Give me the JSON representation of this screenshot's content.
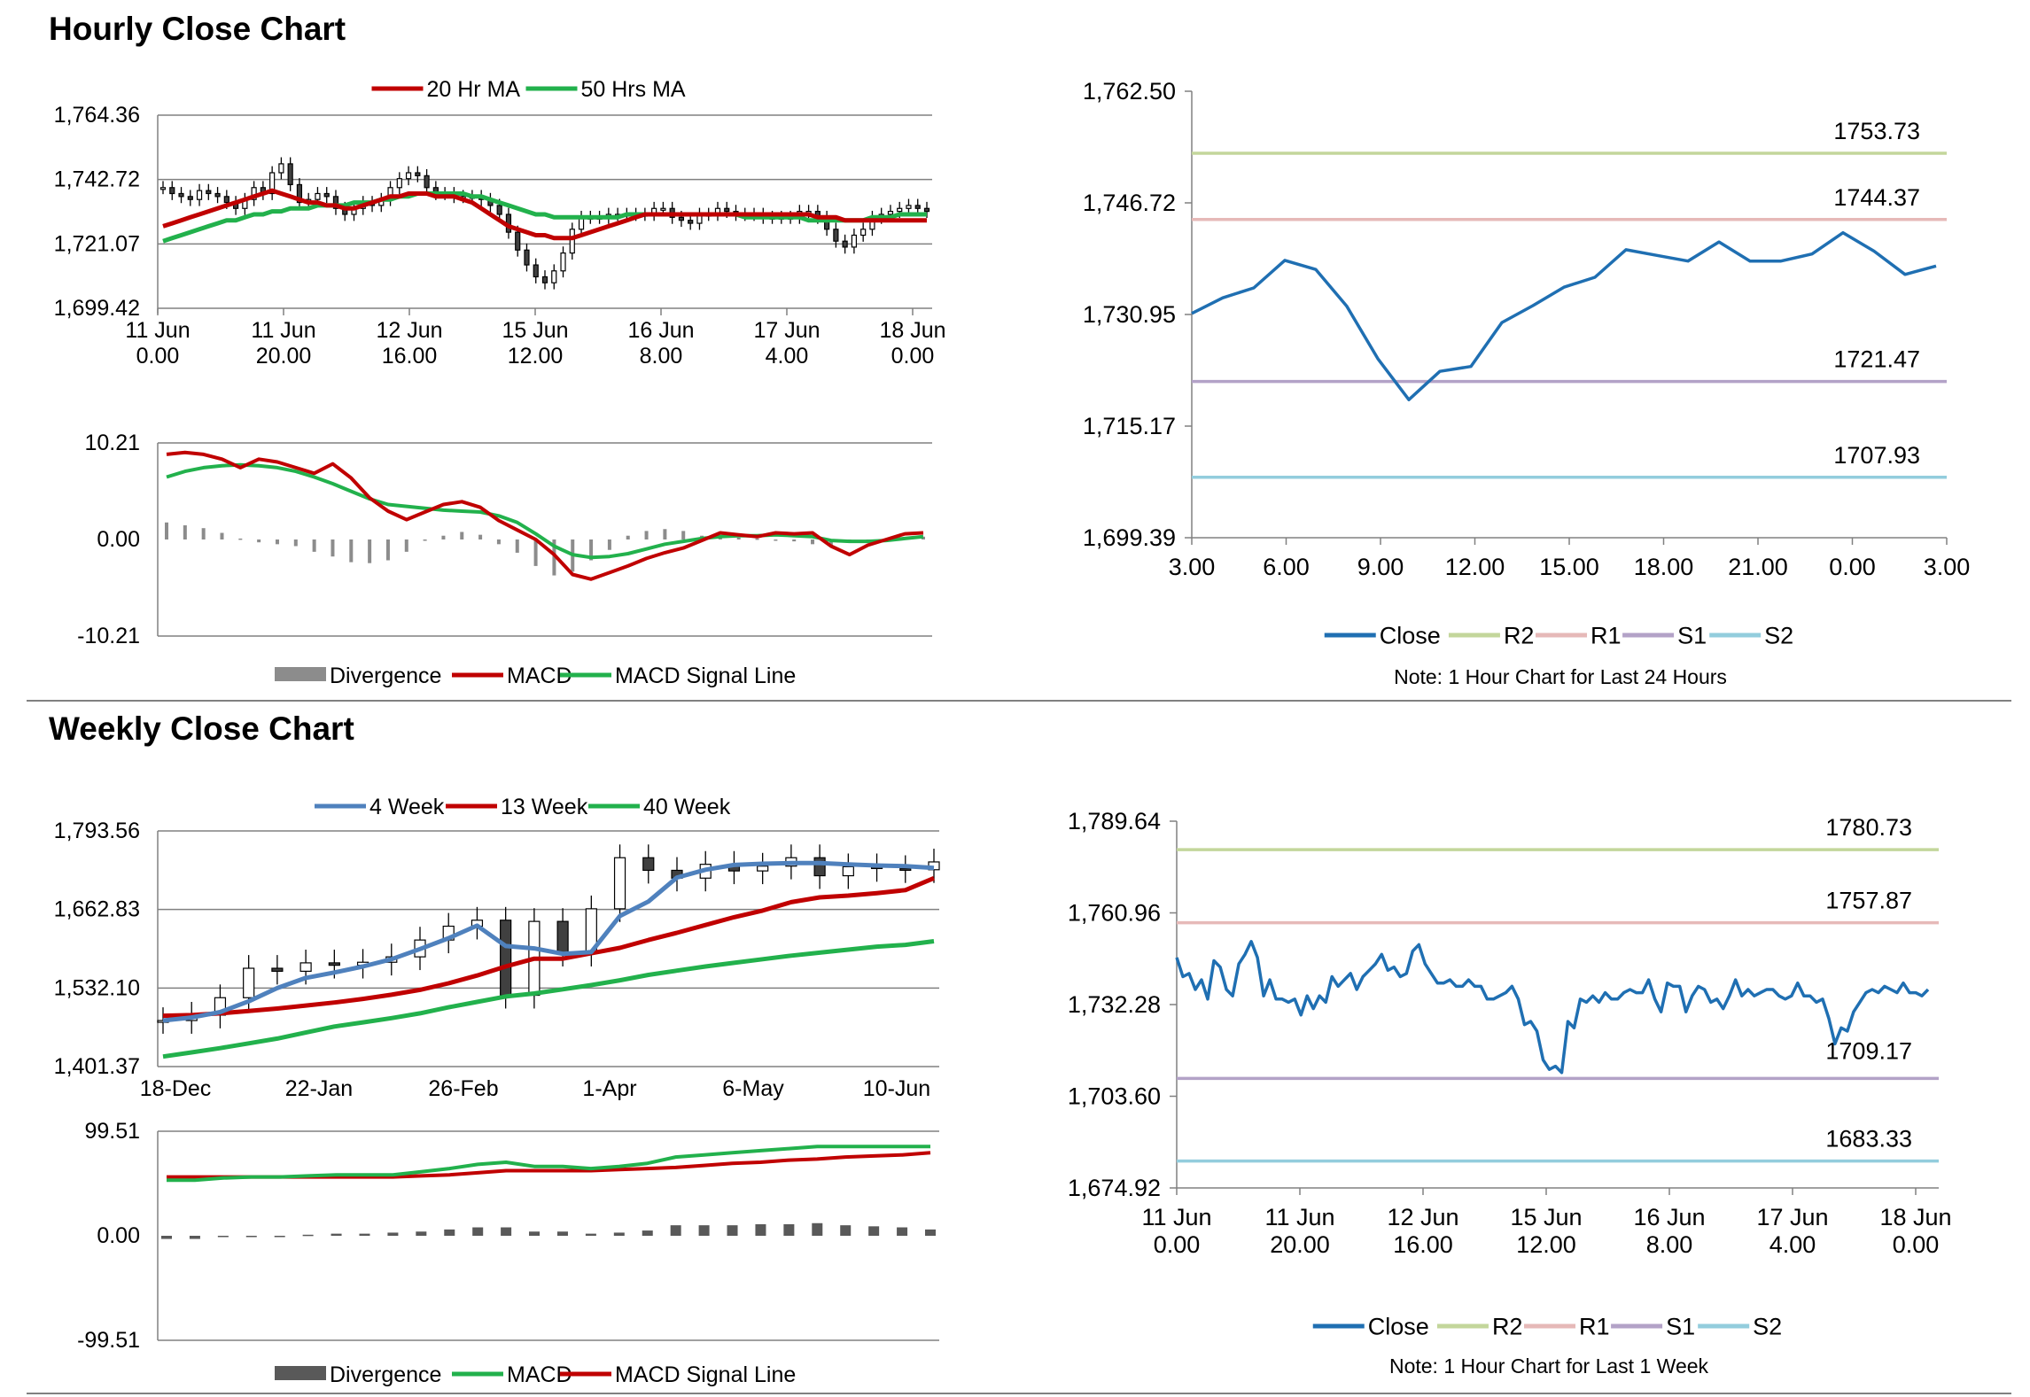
{
  "sections": {
    "hourly_title": "Hourly Close Chart",
    "weekly_title": "Weekly Close Chart"
  },
  "colors": {
    "ma20": "#c00000",
    "ma50": "#22b14c",
    "close": "#1f6fb2",
    "R2": "#c3d69b",
    "R1": "#e6b9b8",
    "S1": "#b3a2c7",
    "S2": "#93cddd",
    "w4": "#4f81bd",
    "w13": "#c00000",
    "w40": "#22b14c",
    "divergence": "#7f7f7f",
    "grid": "#808080"
  },
  "chart_data": [
    {
      "id": "hourly_price",
      "type": "candlestick",
      "legend": [
        "20 Hr MA",
        "50 Hrs MA"
      ],
      "y_ticks": [
        "1,764.36",
        "1,742.72",
        "1,721.07",
        "1,699.42"
      ],
      "ylim": [
        1699.42,
        1764.36
      ],
      "x_ticks": [
        "11 Jun\n0.00",
        "11 Jun\n20.00",
        "12 Jun\n16.00",
        "15 Jun\n12.00",
        "16 Jun\n8.00",
        "17 Jun\n4.00",
        "18 Jun\n0.00"
      ],
      "close": [
        1740,
        1738,
        1737,
        1736,
        1739,
        1738,
        1737,
        1735,
        1733,
        1736,
        1740,
        1738,
        1745,
        1748,
        1741,
        1735,
        1736,
        1738,
        1737,
        1733,
        1731,
        1733,
        1735,
        1734,
        1736,
        1740,
        1743,
        1745,
        1744,
        1740,
        1738,
        1738,
        1737,
        1737,
        1737,
        1736,
        1734,
        1731,
        1725,
        1719,
        1714,
        1710,
        1708,
        1712,
        1718,
        1726,
        1730,
        1730,
        1730,
        1731,
        1731,
        1731,
        1731,
        1731,
        1733,
        1733,
        1730,
        1729,
        1728,
        1731,
        1731,
        1733,
        1732,
        1731,
        1731,
        1731,
        1730,
        1730,
        1730,
        1730,
        1732,
        1732,
        1730,
        1726,
        1722,
        1720,
        1724,
        1726,
        1730,
        1731,
        1732,
        1733,
        1734,
        1733,
        1732
      ],
      "ma20": [
        1727,
        1728,
        1729,
        1730,
        1731,
        1732,
        1733,
        1734,
        1735,
        1736,
        1737,
        1738,
        1739,
        1738,
        1737,
        1736,
        1735,
        1735,
        1734,
        1734,
        1733,
        1733,
        1734,
        1735,
        1736,
        1737,
        1737,
        1738,
        1738,
        1738,
        1737,
        1737,
        1737,
        1736,
        1735,
        1733,
        1731,
        1729,
        1727,
        1726,
        1725,
        1724,
        1724,
        1723,
        1723,
        1723,
        1724,
        1725,
        1726,
        1727,
        1728,
        1729,
        1730,
        1731,
        1731,
        1731,
        1731,
        1731,
        1731,
        1731,
        1731,
        1731,
        1731,
        1731,
        1731,
        1731,
        1731,
        1731,
        1731,
        1731,
        1731,
        1731,
        1730,
        1730,
        1730,
        1729,
        1729,
        1729,
        1729,
        1729,
        1729,
        1729,
        1729,
        1729,
        1729
      ],
      "ma50": [
        1722,
        1723,
        1724,
        1725,
        1726,
        1727,
        1728,
        1729,
        1729,
        1730,
        1731,
        1731,
        1732,
        1732,
        1733,
        1733,
        1733,
        1734,
        1734,
        1734,
        1734,
        1735,
        1735,
        1735,
        1736,
        1736,
        1737,
        1737,
        1738,
        1738,
        1738,
        1738,
        1738,
        1738,
        1737,
        1737,
        1736,
        1735,
        1734,
        1733,
        1732,
        1731,
        1731,
        1730,
        1730,
        1730,
        1730,
        1730,
        1730,
        1730,
        1730,
        1731,
        1731,
        1731,
        1731,
        1731,
        1731,
        1731,
        1731,
        1731,
        1731,
        1731,
        1731,
        1731,
        1730,
        1730,
        1730,
        1730,
        1730,
        1730,
        1730,
        1729,
        1729,
        1729,
        1729,
        1729,
        1729,
        1729,
        1730,
        1730,
        1730,
        1731,
        1731,
        1731,
        1731
      ]
    },
    {
      "id": "hourly_macd",
      "type": "line",
      "legend": [
        "Divergence",
        "MACD",
        "MACD Signal Line"
      ],
      "y_ticks": [
        "10.21",
        "0.00",
        "-10.21"
      ],
      "ylim": [
        -10.21,
        10.21
      ],
      "macd": [
        9,
        9.2,
        9.0,
        8.5,
        7.6,
        8.5,
        8.2,
        7.6,
        7.0,
        8.0,
        6.5,
        4.4,
        3.0,
        2.1,
        2.9,
        3.7,
        4.0,
        3.4,
        2.0,
        1.0,
        0.0,
        -1.6,
        -3.7,
        -4.2,
        -3.5,
        -2.8,
        -2.0,
        -1.4,
        -0.9,
        -0.1,
        0.7,
        0.5,
        0.3,
        0.7,
        0.6,
        0.7,
        -0.7,
        -1.6,
        -0.6,
        0.0,
        0.6,
        0.7
      ],
      "signal": [
        6.6,
        7.2,
        7.6,
        7.8,
        7.9,
        7.8,
        7.6,
        7.2,
        6.6,
        5.9,
        5.1,
        4.3,
        3.7,
        3.5,
        3.3,
        3.1,
        3.0,
        2.9,
        2.5,
        1.8,
        0.6,
        -0.7,
        -1.6,
        -1.9,
        -1.8,
        -1.5,
        -1.0,
        -0.5,
        -0.2,
        0.1,
        0.3,
        0.4,
        0.4,
        0.5,
        0.4,
        0.3,
        -0.1,
        -0.2,
        -0.2,
        -0.1,
        0.1,
        0.3
      ],
      "divergence": [
        1.8,
        1.5,
        1.2,
        0.7,
        0.1,
        -0.3,
        -0.5,
        -0.7,
        -1.3,
        -1.8,
        -2.4,
        -2.5,
        -2.2,
        -1.3,
        -0.1,
        0.4,
        0.8,
        0.5,
        -0.5,
        -1.4,
        -2.8,
        -3.8,
        -3.4,
        -2.2,
        -1.1,
        0.4,
        0.9,
        1.1,
        0.9,
        0.4,
        0.4,
        0.2,
        0.1,
        0.0,
        -0.2,
        -0.5,
        -0.6,
        -0.3,
        -0.1,
        -0.1,
        0.2,
        0.3
      ]
    },
    {
      "id": "hourly_close_24h",
      "type": "line",
      "legend": [
        "Close",
        "R2",
        "R1",
        "S1",
        "S2"
      ],
      "note": "Note: 1 Hour Chart for Last 24 Hours",
      "y_ticks": [
        "1,762.50",
        "1,746.72",
        "1,730.95",
        "1,715.17",
        "1,699.39"
      ],
      "ylim": [
        1699.39,
        1762.5
      ],
      "x_ticks": [
        "3.00",
        "6.00",
        "9.00",
        "12.00",
        "15.00",
        "18.00",
        "21.00",
        "0.00",
        "3.00"
      ],
      "close": [
        1731.1,
        1733.3,
        1734.7,
        1738.6,
        1737.3,
        1732.1,
        1724.7,
        1718.9,
        1722.9,
        1723.6,
        1729.8,
        1732.2,
        1734.8,
        1736.2,
        1740.1,
        1739.3,
        1738.5,
        1741.2,
        1738.5,
        1738.5,
        1739.5,
        1742.5,
        1739.9,
        1736.6,
        1737.8
      ],
      "levels": {
        "R2": 1753.73,
        "R1": 1744.37,
        "S1": 1721.47,
        "S2": 1707.93
      },
      "level_labels": {
        "R2": "1753.73",
        "R1": "1744.37",
        "S1": "1721.47",
        "S2": "1707.93"
      }
    },
    {
      "id": "weekly_price",
      "type": "candlestick",
      "legend": [
        "4 Week",
        "13 Week",
        "40 Week"
      ],
      "y_ticks": [
        "1,793.56",
        "1,662.83",
        "1,532.10",
        "1,401.37"
      ],
      "ylim": [
        1401.37,
        1793.56
      ],
      "x_ticks": [
        "18-Dec",
        "22-Jan",
        "26-Feb",
        "1-Apr",
        "6-May",
        "10-Jun"
      ],
      "close": [
        1478,
        1487,
        1516,
        1565,
        1560,
        1574,
        1570,
        1575,
        1584,
        1612,
        1635,
        1645,
        1520,
        1643,
        1590,
        1664,
        1749,
        1728,
        1715,
        1738,
        1727,
        1735,
        1749,
        1719,
        1734,
        1731,
        1729,
        1742
      ],
      "w4": [
        1478,
        1483,
        1492,
        1510,
        1532,
        1549,
        1558,
        1568,
        1580,
        1597,
        1615,
        1636,
        1602,
        1598,
        1589,
        1592,
        1652,
        1676,
        1716,
        1729,
        1737,
        1739,
        1740,
        1740,
        1738,
        1736,
        1735,
        1732
      ],
      "w13": [
        1486,
        1487,
        1490,
        1494,
        1498,
        1503,
        1508,
        1514,
        1521,
        1529,
        1540,
        1553,
        1568,
        1581,
        1581,
        1590,
        1599,
        1612,
        1624,
        1637,
        1650,
        1661,
        1675,
        1683,
        1686,
        1690,
        1695,
        1715
      ],
      "w40": [
        1418,
        1425,
        1432,
        1440,
        1448,
        1458,
        1468,
        1475,
        1482,
        1490,
        1500,
        1509,
        1518,
        1523,
        1530,
        1537,
        1545,
        1554,
        1561,
        1568,
        1574,
        1580,
        1586,
        1591,
        1596,
        1601,
        1604,
        1610
      ]
    },
    {
      "id": "weekly_macd",
      "type": "line",
      "legend": [
        "Divergence",
        "MACD",
        "MACD Signal Line"
      ],
      "y_ticks": [
        "99.51",
        "0.00",
        "-99.51"
      ],
      "ylim": [
        -99.51,
        99.51
      ],
      "macd": [
        53,
        53,
        55,
        56,
        56,
        57,
        58,
        58,
        58,
        61,
        64,
        68,
        70,
        66,
        66,
        64,
        66,
        69,
        75,
        77,
        79,
        81,
        83,
        85,
        85,
        85,
        85,
        85
      ],
      "signal": [
        56,
        56,
        56,
        56,
        56,
        56,
        56,
        56,
        56,
        57,
        58,
        60,
        62,
        62,
        62,
        62,
        63,
        64,
        65,
        67,
        69,
        70,
        72,
        73,
        75,
        76,
        77,
        79
      ],
      "divergence": [
        -3,
        -3,
        -1,
        0,
        0,
        1,
        2,
        2,
        3,
        4,
        6,
        8,
        8,
        4,
        4,
        2,
        3,
        5,
        10,
        10,
        10,
        11,
        11,
        12,
        10,
        9,
        8,
        6
      ]
    },
    {
      "id": "weekly_close_1w",
      "type": "line",
      "legend": [
        "Close",
        "R2",
        "R1",
        "S1",
        "S2"
      ],
      "note": "Note: 1 Hour Chart for Last 1 Week",
      "y_ticks": [
        "1,789.64",
        "1,760.96",
        "1,732.28",
        "1,703.60",
        "1,674.92"
      ],
      "ylim": [
        1674.92,
        1789.64
      ],
      "x_ticks": [
        "11 Jun\n0.00",
        "11 Jun\n20.00",
        "12 Jun\n16.00",
        "15 Jun\n12.00",
        "16 Jun\n8.00",
        "17 Jun\n4.00",
        "18 Jun\n0.00"
      ],
      "close": [
        1747,
        1741,
        1742,
        1737,
        1740,
        1734,
        1746,
        1744,
        1737,
        1735,
        1745,
        1748,
        1752,
        1747,
        1735,
        1740,
        1734,
        1734,
        1733,
        1734,
        1729,
        1735,
        1731,
        1735,
        1733,
        1741,
        1738,
        1740,
        1742,
        1737,
        1741,
        1743,
        1745,
        1748,
        1743,
        1744,
        1741,
        1742,
        1749,
        1751,
        1745,
        1742,
        1739,
        1739,
        1740,
        1738,
        1738,
        1740,
        1738,
        1738,
        1734,
        1734,
        1735,
        1736,
        1738,
        1734,
        1726,
        1727,
        1724,
        1715,
        1712,
        1713,
        1711,
        1727,
        1725,
        1734,
        1733,
        1735,
        1733,
        1736,
        1734,
        1734,
        1736,
        1737,
        1736,
        1736,
        1740,
        1734,
        1730,
        1739,
        1738,
        1738,
        1730,
        1735,
        1738,
        1737,
        1733,
        1734,
        1731,
        1735,
        1740,
        1735,
        1737,
        1735,
        1736,
        1737,
        1737,
        1735,
        1734,
        1735,
        1739,
        1735,
        1735,
        1733,
        1734,
        1728,
        1720,
        1725,
        1724,
        1730,
        1733,
        1736,
        1737,
        1736,
        1738,
        1737,
        1736,
        1739,
        1736,
        1736,
        1735,
        1737
      ],
      "levels": {
        "R2": 1780.73,
        "R1": 1757.87,
        "S1": 1709.17,
        "S2": 1683.33
      },
      "level_labels": {
        "R2": "1780.73",
        "R1": "1757.87",
        "S1": "1709.17",
        "S2": "1683.33"
      }
    }
  ]
}
